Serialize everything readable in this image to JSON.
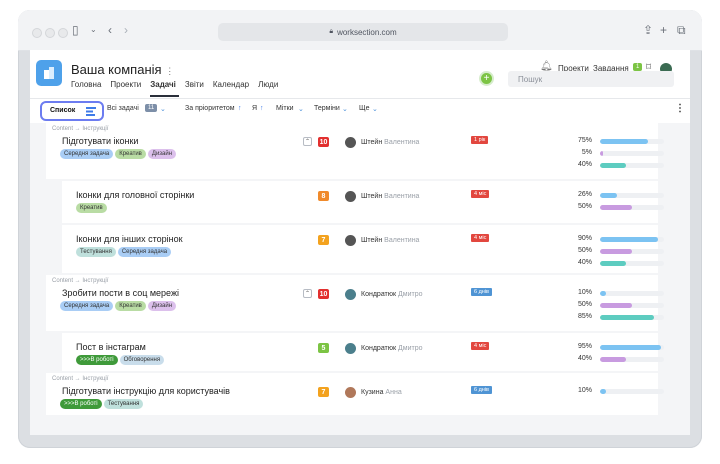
{
  "browser": {
    "url": "worksection.com"
  },
  "header": {
    "company": "Ваша компанія",
    "nav": [
      "Головна",
      "Проекти",
      "Задачі",
      "Звіти",
      "Календар",
      "Люди"
    ],
    "nav_active": 2,
    "projects_label": "Проекти",
    "tasks_label": "Завдання",
    "tasks_count": "1",
    "search_placeholder": "Пошук"
  },
  "toolbar": {
    "list_label": "Список",
    "all_tasks": "Всі задачі",
    "all_tasks_count": "11",
    "priority": "За пріоритетом",
    "me": "Я",
    "tags": "Мітки",
    "terms": "Терміни",
    "more": "Ще"
  },
  "tasks": [
    {
      "crumb": "Content → Інструкції",
      "title": "Підготувати іконки",
      "tags": [
        {
          "label": "Середня задача",
          "color": "#a9cdf5"
        },
        {
          "label": "Креатив",
          "color": "#b9dca4"
        },
        {
          "label": "Дизайн",
          "color": "#dcc0ec"
        }
      ],
      "priority": "10",
      "prio_color": "#e2302f",
      "collapse": true,
      "user": "Штейн",
      "user_sec": "Валентина",
      "term": "1 рік",
      "term_color": "#e2473f",
      "bars": [
        {
          "pct": "75%",
          "value": 75,
          "color": "#7cc3f2"
        },
        {
          "pct": "5%",
          "value": 5,
          "color": "#c89be0"
        },
        {
          "pct": "40%",
          "value": 40,
          "color": "#5dccc0"
        }
      ]
    },
    {
      "crumb": "",
      "title": "Іконки для головної сторінки",
      "tags": [
        {
          "label": "Креатив",
          "color": "#b9dca4"
        }
      ],
      "priority": "8",
      "prio_color": "#f08a2b",
      "collapse": false,
      "user": "Штейн",
      "user_sec": "Валентина",
      "term": "4 міс",
      "term_color": "#e2473f",
      "bars": [
        {
          "pct": "26%",
          "value": 26,
          "color": "#7cc3f2"
        },
        {
          "pct": "50%",
          "value": 50,
          "color": "#c89be0"
        }
      ]
    },
    {
      "crumb": "",
      "title": "Іконки для інших сторінок",
      "tags": [
        {
          "label": "Тестування",
          "color": "#bfe0dc"
        },
        {
          "label": "Середня задача",
          "color": "#a9cdf5"
        }
      ],
      "priority": "7",
      "prio_color": "#f3a21e",
      "collapse": false,
      "user": "Штейн",
      "user_sec": "Валентина",
      "term": "4 міс",
      "term_color": "#e2473f",
      "bars": [
        {
          "pct": "90%",
          "value": 90,
          "color": "#7cc3f2"
        },
        {
          "pct": "50%",
          "value": 50,
          "color": "#c89be0"
        },
        {
          "pct": "40%",
          "value": 40,
          "color": "#5dccc0"
        }
      ]
    },
    {
      "crumb": "Content → Інструкції",
      "title": "Зробити пости в соц мережі",
      "tags": [
        {
          "label": "Середня задача",
          "color": "#a9cdf5"
        },
        {
          "label": "Креатив",
          "color": "#b9dca4"
        },
        {
          "label": "Дизайн",
          "color": "#dcc0ec"
        }
      ],
      "priority": "10",
      "prio_color": "#e2302f",
      "collapse": true,
      "user": "Кондратюк",
      "user_sec": "Дмитро",
      "term": "6 днів",
      "term_color": "#4f94d4",
      "bars": [
        {
          "pct": "10%",
          "value": 10,
          "color": "#7cc3f2"
        },
        {
          "pct": "50%",
          "value": 50,
          "color": "#c89be0"
        },
        {
          "pct": "85%",
          "value": 85,
          "color": "#5dccc0"
        }
      ]
    },
    {
      "crumb": "",
      "title": "Пост в інстаграм",
      "tags": [
        {
          "label": ">>>В роботі",
          "color": "#3f9a3a",
          "dark": true
        },
        {
          "label": "Обговорення",
          "color": "#c9ddeb"
        }
      ],
      "priority": "5",
      "prio_color": "#7cc444",
      "collapse": false,
      "user": "Кондратюк",
      "user_sec": "Дмитро",
      "term": "4 міс",
      "term_color": "#e2473f",
      "bars": [
        {
          "pct": "95%",
          "value": 95,
          "color": "#7cc3f2"
        },
        {
          "pct": "40%",
          "value": 40,
          "color": "#c89be0"
        }
      ]
    },
    {
      "crumb": "Content → Інструкції",
      "title": "Підготувати інструкцію для користувачів",
      "tags": [
        {
          "label": ">>>В роботі",
          "color": "#3f9a3a",
          "dark": true
        },
        {
          "label": "Тестування",
          "color": "#bfe0dc"
        }
      ],
      "priority": "7",
      "prio_color": "#f3a21e",
      "collapse": false,
      "user": "Кузина",
      "user_sec": "Анна",
      "term": "6 днів",
      "term_color": "#4f94d4",
      "bars": [
        {
          "pct": "10%",
          "value": 10,
          "color": "#7cc3f2"
        }
      ]
    }
  ]
}
